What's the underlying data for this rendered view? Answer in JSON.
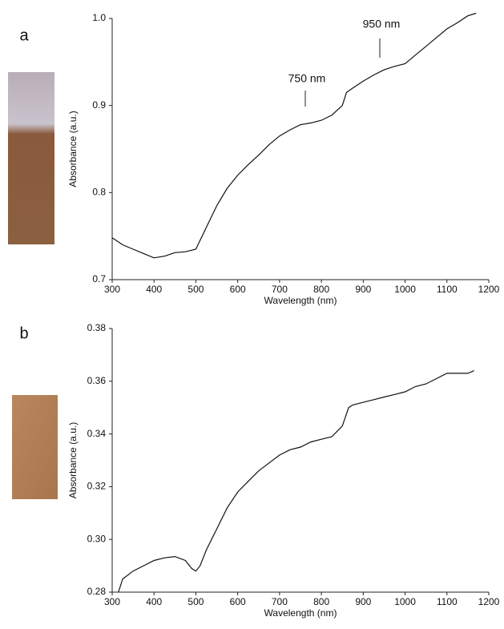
{
  "chart_data": [
    {
      "type": "line",
      "panel_label": "a",
      "xlabel": "Wavelength (nm)",
      "ylabel": "Absorbance (a.u.)",
      "annotations": [
        "750 nm",
        "950 nm"
      ],
      "x": [
        300,
        325,
        350,
        375,
        400,
        425,
        450,
        475,
        500,
        525,
        550,
        575,
        600,
        625,
        650,
        675,
        700,
        725,
        750,
        775,
        800,
        825,
        850,
        860,
        875,
        900,
        925,
        950,
        975,
        1000,
        1025,
        1050,
        1075,
        1100,
        1125,
        1150,
        1170
      ],
      "values": [
        0.748,
        0.74,
        0.735,
        0.73,
        0.725,
        0.727,
        0.731,
        0.732,
        0.735,
        0.76,
        0.785,
        0.805,
        0.82,
        0.832,
        0.843,
        0.855,
        0.865,
        0.872,
        0.878,
        0.88,
        0.883,
        0.889,
        0.9,
        0.915,
        0.92,
        0.928,
        0.935,
        0.941,
        0.945,
        0.948,
        0.958,
        0.968,
        0.978,
        0.988,
        0.995,
        1.003,
        1.006
      ],
      "color": "#111111",
      "xlim": [
        300,
        1200
      ],
      "xticks": [
        300,
        400,
        500,
        600,
        700,
        800,
        900,
        1000,
        1100,
        1200
      ],
      "ylim": [
        0.7,
        1.0
      ],
      "yticks": [
        0.7,
        0.8,
        0.9,
        {
          "value": 1.0,
          "label": "1.0"
        }
      ]
    },
    {
      "type": "line",
      "panel_label": "b",
      "xlabel": "Wavelength (nm)",
      "ylabel": "Absorbance (a.u.)",
      "x": [
        315,
        325,
        350,
        375,
        400,
        425,
        450,
        475,
        490,
        500,
        510,
        525,
        550,
        575,
        600,
        625,
        650,
        675,
        700,
        725,
        750,
        775,
        800,
        825,
        850,
        865,
        875,
        900,
        925,
        950,
        975,
        1000,
        1025,
        1050,
        1075,
        1100,
        1125,
        1150,
        1165
      ],
      "values": [
        0.28,
        0.285,
        0.288,
        0.29,
        0.292,
        0.293,
        0.2935,
        0.292,
        0.289,
        0.288,
        0.29,
        0.296,
        0.304,
        0.312,
        0.318,
        0.322,
        0.326,
        0.329,
        0.332,
        0.334,
        0.335,
        0.337,
        0.338,
        0.339,
        0.343,
        0.35,
        0.351,
        0.352,
        0.353,
        0.354,
        0.355,
        0.356,
        0.358,
        0.359,
        0.361,
        0.363,
        0.363,
        0.363,
        0.364
      ],
      "color": "#111111",
      "xlim": [
        300,
        1200
      ],
      "xticks": [
        300,
        400,
        500,
        600,
        700,
        800,
        900,
        1000,
        1100,
        1200
      ],
      "ylim": [
        0.28,
        0.38
      ],
      "yticks": [
        0.28,
        {
          "value": 0.3,
          "label": "0.30"
        },
        0.32,
        0.34,
        0.36,
        0.38
      ]
    }
  ]
}
